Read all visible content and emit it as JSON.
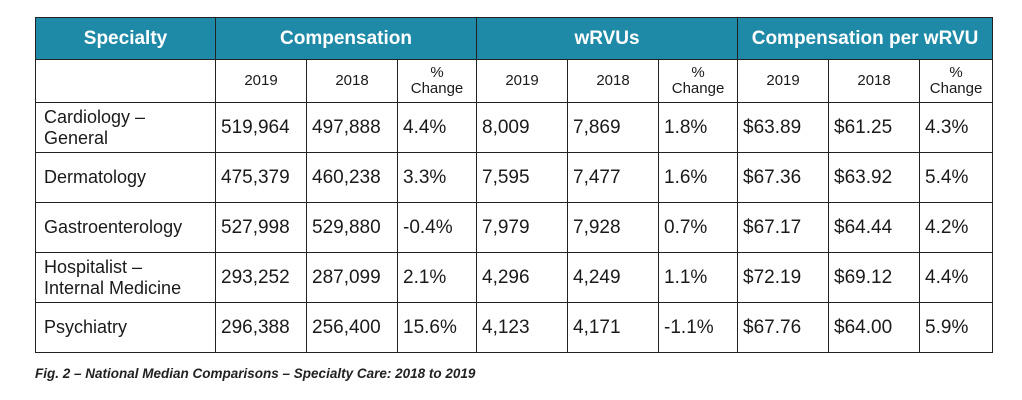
{
  "headers": {
    "specialty": "Specialty",
    "compensation": "Compensation",
    "wrvus": "wRVUs",
    "comp_per_wrvu": "Compensation per wRVU"
  },
  "subheaders": {
    "y2019": "2019",
    "y2018": "2018",
    "pct_line1": "%",
    "pct_line2": "Change"
  },
  "rows": [
    {
      "specialty_line1": "Cardiology –",
      "specialty_line2": "General",
      "comp_2019": "519,964",
      "comp_2018": "497,888",
      "comp_pct": "4.4%",
      "wrvu_2019": "8,009",
      "wrvu_2018": "7,869",
      "wrvu_pct": "1.8%",
      "cpw_2019": "$63.89",
      "cpw_2018": "$61.25",
      "cpw_pct": "4.3%"
    },
    {
      "specialty_line1": "Dermatology",
      "specialty_line2": "",
      "comp_2019": "475,379",
      "comp_2018": "460,238",
      "comp_pct": "3.3%",
      "wrvu_2019": "7,595",
      "wrvu_2018": "7,477",
      "wrvu_pct": "1.6%",
      "cpw_2019": "$67.36",
      "cpw_2018": "$63.92",
      "cpw_pct": "5.4%"
    },
    {
      "specialty_line1": "Gastroenterology",
      "specialty_line2": "",
      "comp_2019": "527,998",
      "comp_2018": "529,880",
      "comp_pct": "-0.4%",
      "wrvu_2019": "7,979",
      "wrvu_2018": "7,928",
      "wrvu_pct": "0.7%",
      "cpw_2019": "$67.17",
      "cpw_2018": "$64.44",
      "cpw_pct": "4.2%"
    },
    {
      "specialty_line1": "Hospitalist –",
      "specialty_line2": "Internal Medicine",
      "comp_2019": "293,252",
      "comp_2018": "287,099",
      "comp_pct": "2.1%",
      "wrvu_2019": "4,296",
      "wrvu_2018": "4,249",
      "wrvu_pct": "1.1%",
      "cpw_2019": "$72.19",
      "cpw_2018": "$69.12",
      "cpw_pct": "4.4%"
    },
    {
      "specialty_line1": "Psychiatry",
      "specialty_line2": "",
      "comp_2019": "296,388",
      "comp_2018": "256,400",
      "comp_pct": "15.6%",
      "wrvu_2019": "4,123",
      "wrvu_2018": "4,171",
      "wrvu_pct": "-1.1%",
      "cpw_2019": "$67.76",
      "cpw_2018": "$64.00",
      "cpw_pct": "5.9%"
    }
  ],
  "caption": "Fig. 2 – National Median Comparisons – Specialty Care: 2018 to 2019",
  "colors": {
    "header_bg": "#1f8aa7",
    "header_text": "#ffffff"
  }
}
